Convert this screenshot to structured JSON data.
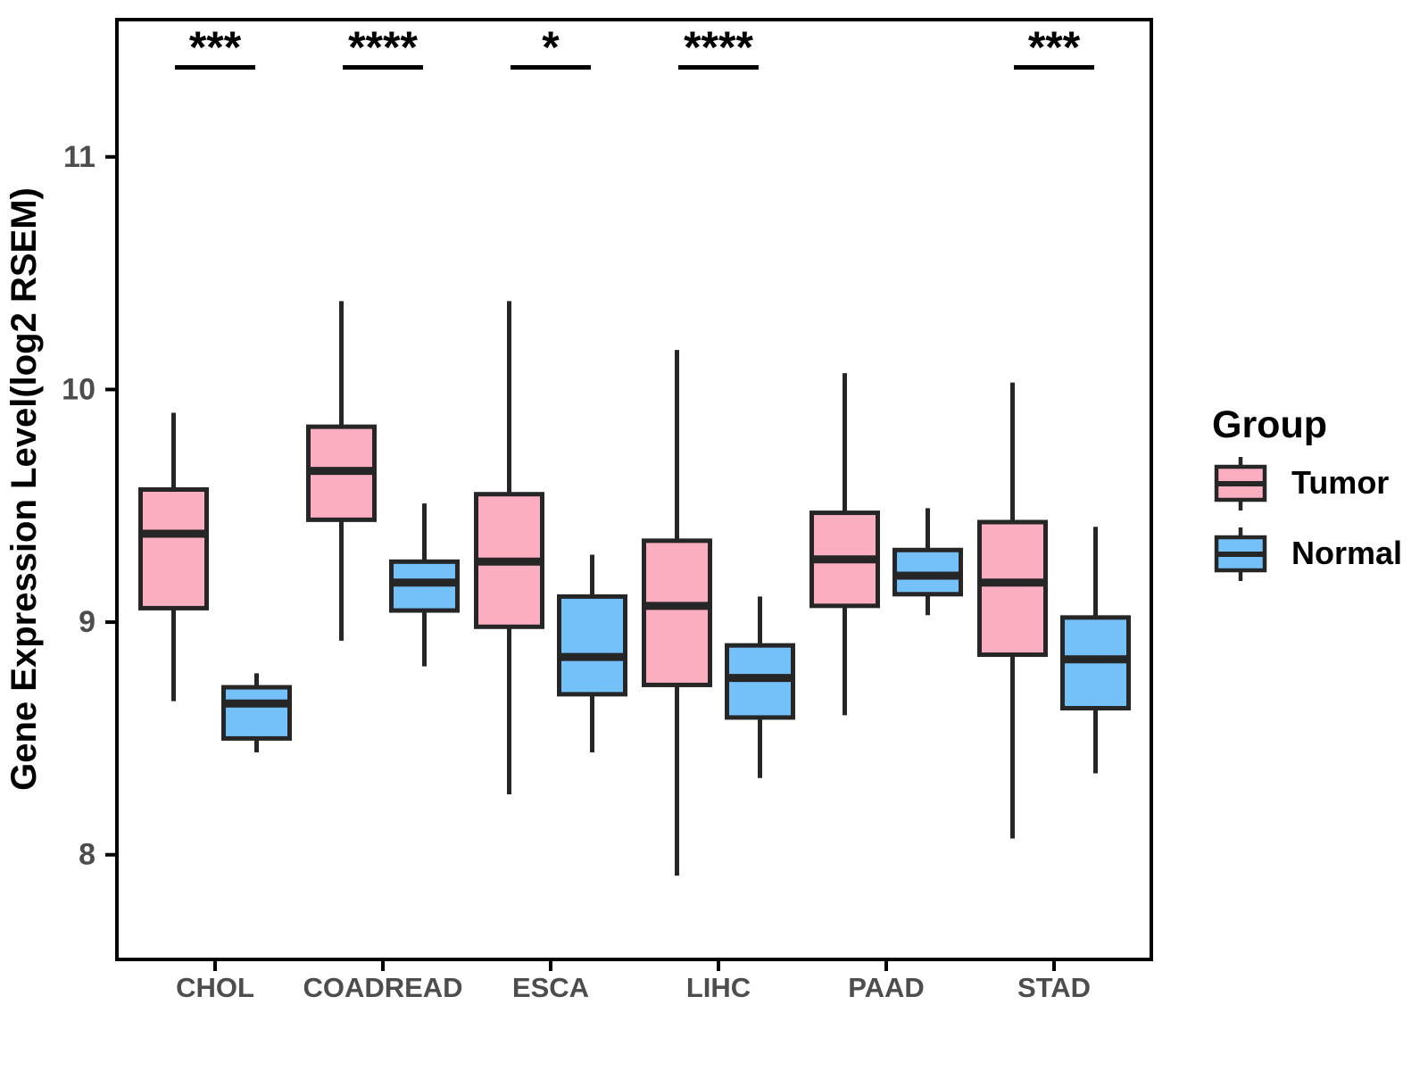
{
  "figure": {
    "background": "#ffffff",
    "panel_border_color": "#000000",
    "box_stroke_color": "#262626",
    "axis_text_color": "#4d4d4d",
    "title_text_color": "#000000"
  },
  "chart_data": {
    "type": "boxplot",
    "title": "",
    "xlabel": "",
    "ylabel": "Gene Expression Level(log2 RSEM)",
    "categories": [
      "CHOL",
      "COADREAD",
      "ESCA",
      "LIHC",
      "PAAD",
      "STAD"
    ],
    "yticks": [
      8,
      9,
      10,
      11
    ],
    "ylim": [
      7.55,
      11.59
    ],
    "grid": false,
    "legend_position": "right",
    "legend_title": "Group",
    "series": [
      {
        "name": "Tumor",
        "color": "#FBAEC0",
        "boxes": [
          {
            "category": "CHOL",
            "min": 8.66,
            "q1": 9.06,
            "median": 9.38,
            "q3": 9.57,
            "max": 9.9
          },
          {
            "category": "COADREAD",
            "min": 8.92,
            "q1": 9.44,
            "median": 9.65,
            "q3": 9.84,
            "max": 10.38
          },
          {
            "category": "ESCA",
            "min": 8.26,
            "q1": 8.98,
            "median": 9.26,
            "q3": 9.55,
            "max": 10.38
          },
          {
            "category": "LIHC",
            "min": 7.91,
            "q1": 8.73,
            "median": 9.07,
            "q3": 9.35,
            "max": 10.17
          },
          {
            "category": "PAAD",
            "min": 8.6,
            "q1": 9.07,
            "median": 9.27,
            "q3": 9.47,
            "max": 10.07
          },
          {
            "category": "STAD",
            "min": 8.07,
            "q1": 8.86,
            "median": 9.17,
            "q3": 9.43,
            "max": 10.03
          }
        ]
      },
      {
        "name": "Normal",
        "color": "#74C0F8",
        "boxes": [
          {
            "category": "CHOL",
            "min": 8.44,
            "q1": 8.5,
            "median": 8.65,
            "q3": 8.72,
            "max": 8.78
          },
          {
            "category": "COADREAD",
            "min": 8.81,
            "q1": 9.05,
            "median": 9.17,
            "q3": 9.26,
            "max": 9.51
          },
          {
            "category": "ESCA",
            "min": 8.44,
            "q1": 8.69,
            "median": 8.85,
            "q3": 9.11,
            "max": 9.29
          },
          {
            "category": "LIHC",
            "min": 8.33,
            "q1": 8.59,
            "median": 8.76,
            "q3": 8.9,
            "max": 9.11
          },
          {
            "category": "PAAD",
            "min": 9.03,
            "q1": 9.12,
            "median": 9.2,
            "q3": 9.31,
            "max": 9.49
          },
          {
            "category": "STAD",
            "min": 8.35,
            "q1": 8.63,
            "median": 8.84,
            "q3": 9.02,
            "max": 9.41
          }
        ]
      }
    ],
    "significance": [
      "***",
      "****",
      "*",
      "****",
      "",
      "***"
    ]
  }
}
